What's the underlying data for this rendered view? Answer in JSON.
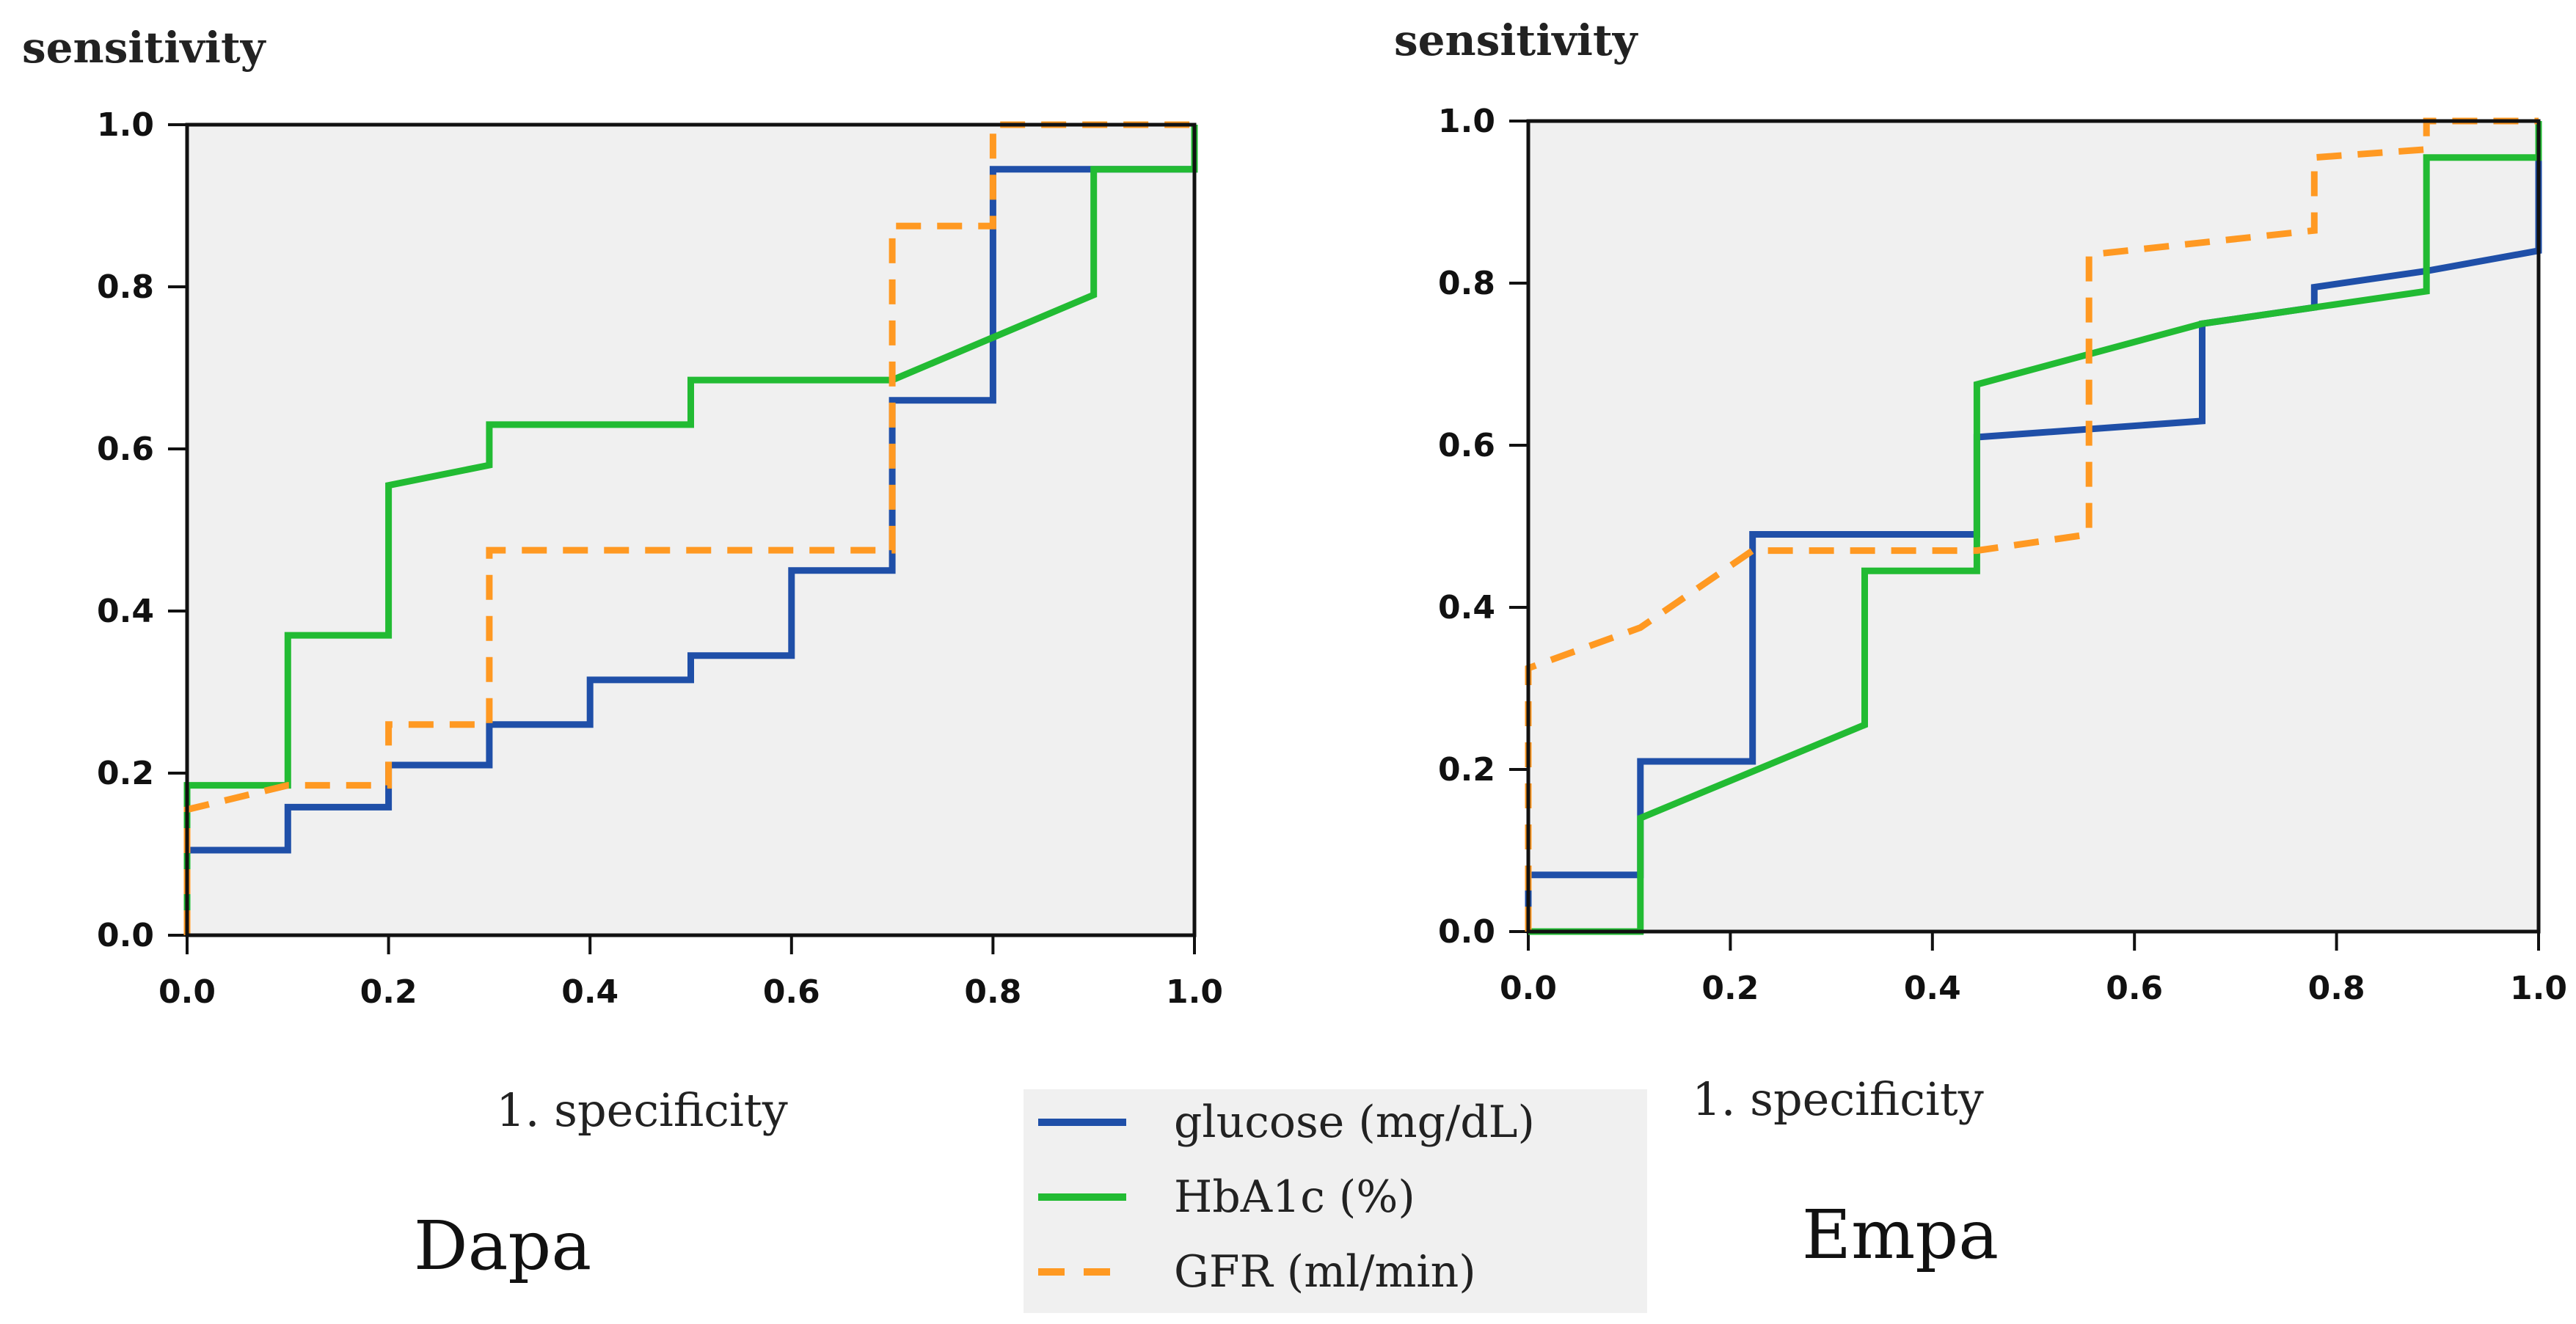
{
  "chart_data": [
    {
      "type": "line",
      "panel_title": "Dapa",
      "ylabel": "sensitivity",
      "xlabel": "1. specificity",
      "xlim": [
        0,
        1
      ],
      "ylim": [
        0,
        1
      ],
      "xticks": [
        "0.0",
        "0.2",
        "0.4",
        "0.6",
        "0.8",
        "1.0"
      ],
      "yticks": [
        "0.0",
        "0.2",
        "0.4",
        "0.6",
        "0.8",
        "1.0"
      ],
      "grid": false,
      "series": [
        {
          "name": "glucose (mg/dL)",
          "color": "#1f4fa8",
          "style": "solid",
          "points": [
            [
              0,
              0
            ],
            [
              0,
              0.105
            ],
            [
              0.1,
              0.105
            ],
            [
              0.1,
              0.158
            ],
            [
              0.2,
              0.158
            ],
            [
              0.2,
              0.21
            ],
            [
              0.3,
              0.21
            ],
            [
              0.3,
              0.26
            ],
            [
              0.4,
              0.26
            ],
            [
              0.4,
              0.315
            ],
            [
              0.5,
              0.315
            ],
            [
              0.5,
              0.345
            ],
            [
              0.6,
              0.345
            ],
            [
              0.6,
              0.45
            ],
            [
              0.7,
              0.45
            ],
            [
              0.7,
              0.66
            ],
            [
              0.8,
              0.66
            ],
            [
              0.8,
              0.945
            ],
            [
              0.9,
              0.945
            ],
            [
              1.0,
              0.945
            ],
            [
              1.0,
              1.0
            ]
          ]
        },
        {
          "name": "HbA1c (%)",
          "color": "#22bb33",
          "style": "solid",
          "points": [
            [
              0,
              0
            ],
            [
              0,
              0.185
            ],
            [
              0.1,
              0.185
            ],
            [
              0.1,
              0.37
            ],
            [
              0.2,
              0.37
            ],
            [
              0.2,
              0.555
            ],
            [
              0.3,
              0.58
            ],
            [
              0.3,
              0.63
            ],
            [
              0.5,
              0.63
            ],
            [
              0.5,
              0.685
            ],
            [
              0.7,
              0.685
            ],
            [
              0.9,
              0.79
            ],
            [
              0.9,
              0.945
            ],
            [
              1.0,
              0.945
            ],
            [
              1.0,
              1.0
            ]
          ]
        },
        {
          "name": "GFR (ml/min)",
          "color": "#ff9922",
          "style": "dashed",
          "points": [
            [
              0,
              0
            ],
            [
              0,
              0.155
            ],
            [
              0.1,
              0.185
            ],
            [
              0.2,
              0.185
            ],
            [
              0.2,
              0.26
            ],
            [
              0.3,
              0.26
            ],
            [
              0.3,
              0.475
            ],
            [
              0.7,
              0.475
            ],
            [
              0.7,
              0.875
            ],
            [
              0.8,
              0.875
            ],
            [
              0.8,
              1.0
            ],
            [
              1.0,
              1.0
            ]
          ]
        }
      ]
    },
    {
      "type": "line",
      "panel_title": "Empa",
      "ylabel": "sensitivity",
      "xlabel": "1. specificity",
      "xlim": [
        0,
        1
      ],
      "ylim": [
        0,
        1
      ],
      "xticks": [
        "0.0",
        "0.2",
        "0.4",
        "0.6",
        "0.8",
        "1.0"
      ],
      "yticks": [
        "0.0",
        "0.2",
        "0.4",
        "0.6",
        "0.8",
        "1.0"
      ],
      "grid": false,
      "series": [
        {
          "name": "glucose (mg/dL)",
          "color": "#1f4fa8",
          "style": "solid",
          "points": [
            [
              0,
              0
            ],
            [
              0,
              0.07
            ],
            [
              0.111,
              0.07
            ],
            [
              0.111,
              0.21
            ],
            [
              0.222,
              0.21
            ],
            [
              0.222,
              0.49
            ],
            [
              0.444,
              0.49
            ],
            [
              0.444,
              0.61
            ],
            [
              0.667,
              0.63
            ],
            [
              0.667,
              0.75
            ],
            [
              0.778,
              0.77
            ],
            [
              0.778,
              0.795
            ],
            [
              0.889,
              0.815
            ],
            [
              1.0,
              0.84
            ],
            [
              1.0,
              1.0
            ]
          ]
        },
        {
          "name": "HbA1c (%)",
          "color": "#22bb33",
          "style": "solid",
          "points": [
            [
              0,
              0
            ],
            [
              0.111,
              0
            ],
            [
              0.111,
              0.14
            ],
            [
              0.333,
              0.255
            ],
            [
              0.333,
              0.445
            ],
            [
              0.444,
              0.445
            ],
            [
              0.444,
              0.675
            ],
            [
              0.667,
              0.75
            ],
            [
              0.889,
              0.79
            ],
            [
              0.889,
              0.955
            ],
            [
              1.0,
              0.955
            ],
            [
              1.0,
              1.0
            ]
          ]
        },
        {
          "name": "GFR (ml/min)",
          "color": "#ff9922",
          "style": "dashed",
          "points": [
            [
              0,
              0
            ],
            [
              0,
              0.325
            ],
            [
              0.111,
              0.375
            ],
            [
              0.222,
              0.47
            ],
            [
              0.444,
              0.47
            ],
            [
              0.555,
              0.49
            ],
            [
              0.555,
              0.835
            ],
            [
              0.778,
              0.865
            ],
            [
              0.778,
              0.955
            ],
            [
              0.889,
              0.965
            ],
            [
              0.889,
              1.0
            ],
            [
              1.0,
              1.0
            ]
          ]
        }
      ]
    }
  ],
  "legend": {
    "placement": "bottom-center",
    "items": [
      "glucose (mg/dL)",
      "HbA1c (%)",
      "GFR (ml/min)"
    ]
  }
}
